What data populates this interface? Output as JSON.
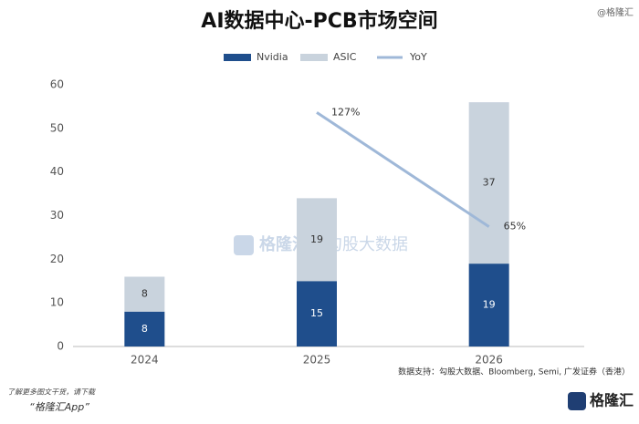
{
  "chart_data": {
    "type": "bar",
    "stacked": true,
    "title": "AI数据中心-PCB市场空间",
    "categories": [
      "2024",
      "2025",
      "2026"
    ],
    "series": [
      {
        "name": "Nvidia",
        "color": "#1f4e8c",
        "values": [
          8,
          15,
          19
        ]
      },
      {
        "name": "ASIC",
        "color": "#c9d3dd",
        "values": [
          8,
          19,
          37
        ]
      },
      {
        "name": "YoY",
        "type": "line",
        "axis": "y2",
        "color": "#9fb8d8",
        "values": [
          null,
          127,
          65
        ],
        "value_labels": [
          null,
          "127%",
          "65%"
        ]
      }
    ],
    "ylim": [
      0,
      60
    ],
    "yticks": [
      0,
      10,
      20,
      30,
      40,
      50,
      60
    ],
    "y2lim": [
      0,
      142
    ],
    "grid": false,
    "source": "数据支持：勾股大数据、Bloomberg, Semi, 广发证券（香港）"
  },
  "watermark_top": "@格隆汇",
  "watermark_center": [
    "格隆汇",
    "勾股大数据"
  ],
  "footer": {
    "line1": "了解更多图文干货，请下载",
    "line2": "“格隆汇App”",
    "logo": "格隆汇"
  }
}
